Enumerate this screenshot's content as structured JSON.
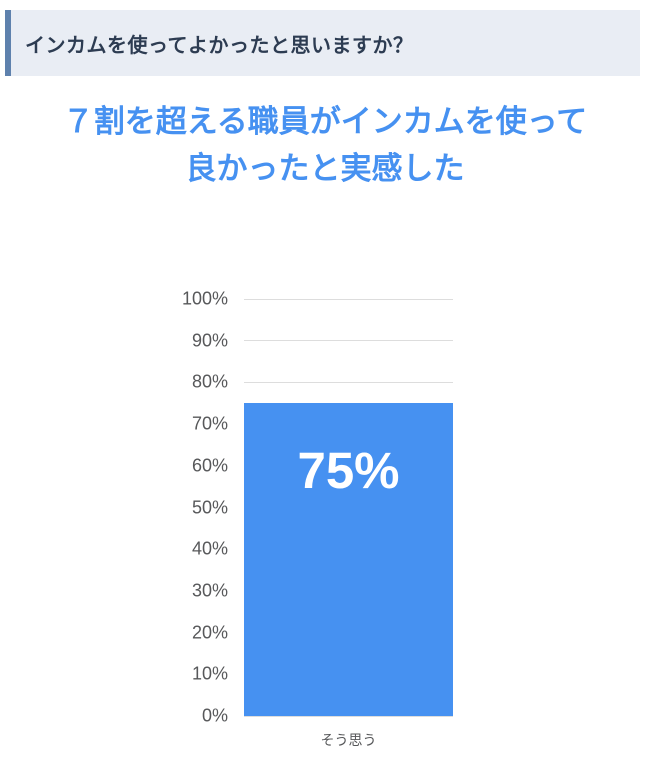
{
  "question_banner": {
    "text": "インカムを使ってよかったと思いますか？",
    "background": "#e9edf4",
    "accent_border_color": "#5e81ad",
    "text_color": "#2d3c52"
  },
  "headline": {
    "line1": "７割を超える職員がインカムを使って",
    "line2": "良かったと実感した",
    "color": "#4691f1"
  },
  "chart_data": {
    "type": "bar",
    "title": "７割を超える職員がインカムを使って良かったと実感した",
    "categories": [
      "そう思う"
    ],
    "values": [
      75
    ],
    "value_labels": [
      "75%"
    ],
    "xlabel": "",
    "ylabel": "",
    "ylim": [
      0,
      100
    ],
    "y_ticks": [
      0,
      10,
      20,
      30,
      40,
      50,
      60,
      70,
      80,
      90,
      100
    ],
    "y_tick_labels": [
      "0%",
      "10%",
      "20%",
      "30%",
      "40%",
      "50%",
      "60%",
      "70%",
      "80%",
      "90%",
      "100%"
    ],
    "grid": true,
    "legend": "none",
    "bar_color": "#4691f1",
    "bar_label_color": "#ffffff",
    "axis_text_color": "#57585a",
    "gridline_color": "#dddddd"
  }
}
